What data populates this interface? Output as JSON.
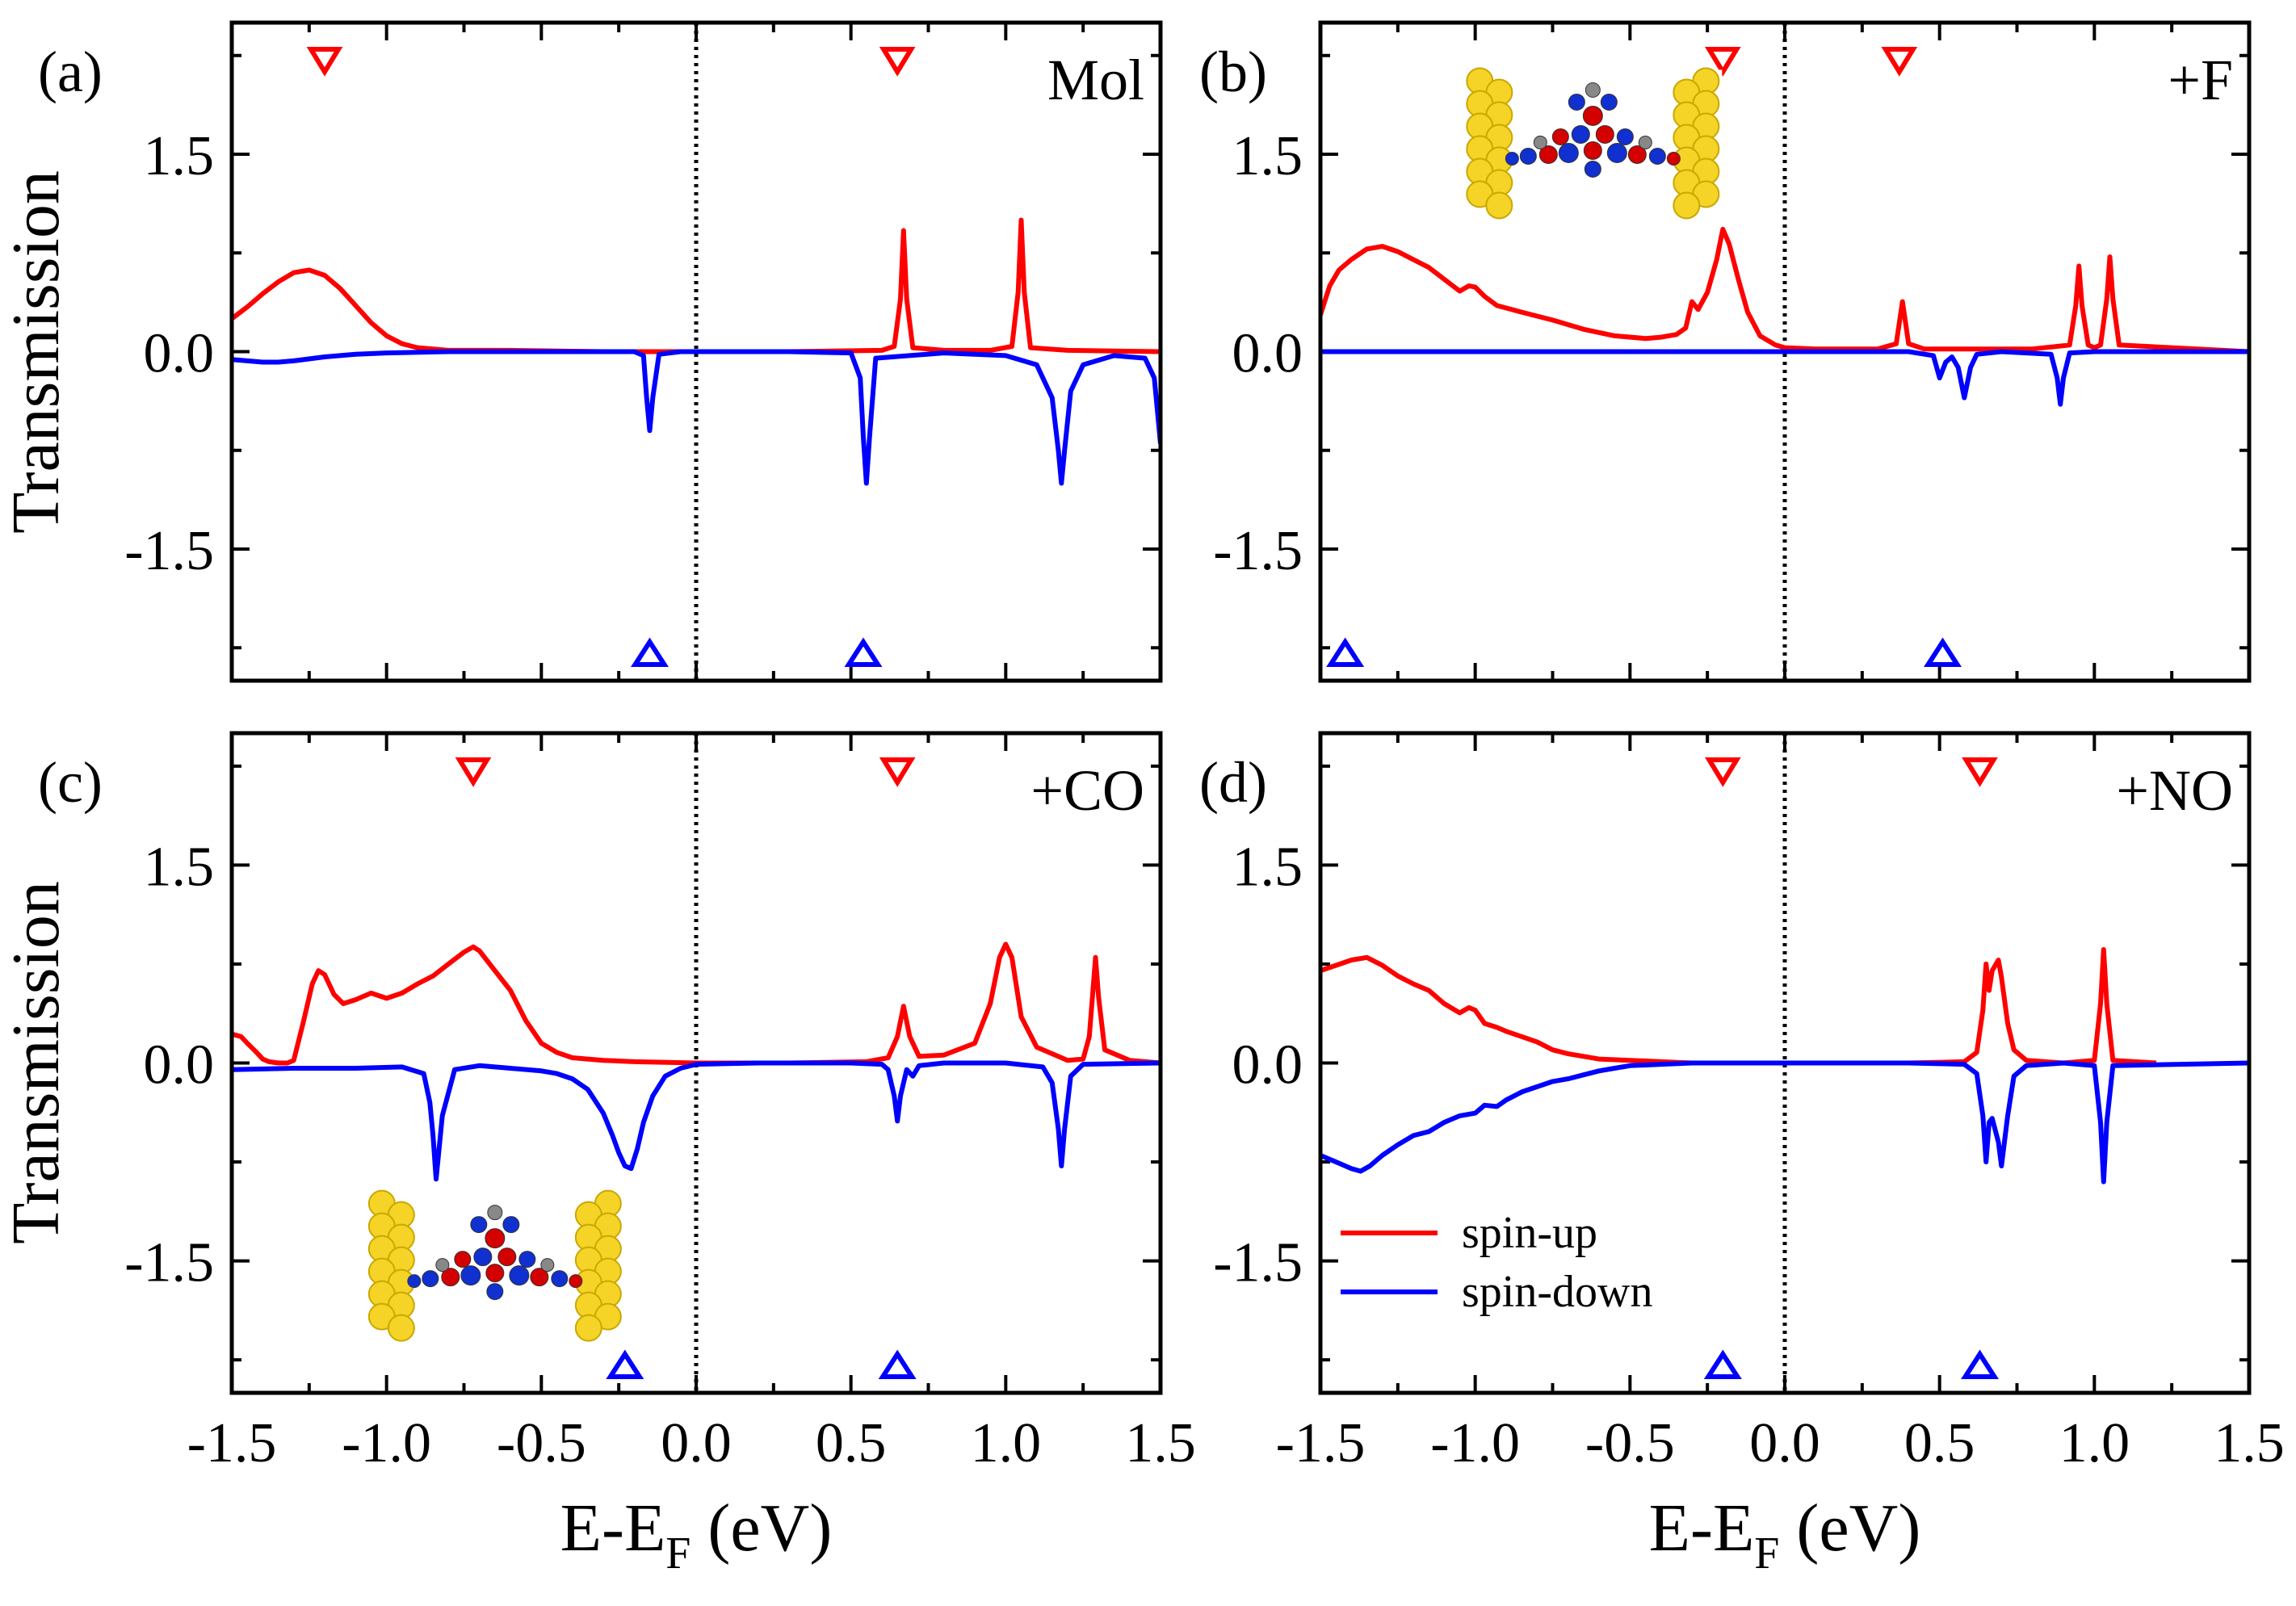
{
  "figure": {
    "ylabel": "Transmission",
    "xlabel_main": "E-E",
    "xlabel_sub": "F",
    "xlabel_unit": "(eV)",
    "legend": {
      "up_label": "spin-up",
      "down_label": "spin-down",
      "placement": "lower-left of panel (d)"
    },
    "colors": {
      "up": "#ff0000",
      "down": "#0000ff",
      "axis": "#000000"
    }
  },
  "chart_data": [
    {
      "type": "line",
      "panel": "(a)",
      "label": "Mol",
      "xlim": [
        -1.5,
        1.5
      ],
      "ylim": [
        -2.5,
        2.5
      ],
      "xticks": [
        "-1.5",
        "-1.0",
        "-0.5",
        "0.0",
        "0.5",
        "1.0",
        "1.5"
      ],
      "yticks": [
        "1.5",
        "0.0",
        "-1.5"
      ],
      "fermi_level": 0.0,
      "series": [
        {
          "name": "spin-up",
          "color": "#ff0000",
          "x": [
            -1.5,
            -1.45,
            -1.4,
            -1.35,
            -1.3,
            -1.25,
            -1.2,
            -1.15,
            -1.1,
            -1.05,
            -1.0,
            -0.95,
            -0.9,
            -0.85,
            -0.8,
            -0.6,
            -0.3,
            0.0,
            0.3,
            0.6,
            0.64,
            0.66,
            0.67,
            0.68,
            0.7,
            0.8,
            0.95,
            1.02,
            1.04,
            1.05,
            1.06,
            1.08,
            1.2,
            1.5
          ],
          "y": [
            0.25,
            0.34,
            0.44,
            0.53,
            0.6,
            0.62,
            0.58,
            0.48,
            0.35,
            0.22,
            0.12,
            0.06,
            0.03,
            0.02,
            0.01,
            0.01,
            0.0,
            0.0,
            0.0,
            0.01,
            0.04,
            0.4,
            0.92,
            0.4,
            0.03,
            0.01,
            0.01,
            0.04,
            0.45,
            1.0,
            0.45,
            0.03,
            0.01,
            0.0
          ]
        },
        {
          "name": "spin-down",
          "color": "#0000ff",
          "x": [
            -1.5,
            -1.4,
            -1.35,
            -1.3,
            -1.2,
            -1.1,
            -1.0,
            -0.8,
            -0.5,
            -0.3,
            -0.2,
            -0.17,
            -0.16,
            -0.15,
            -0.14,
            -0.12,
            -0.05,
            0.0,
            0.3,
            0.5,
            0.53,
            0.54,
            0.55,
            0.56,
            0.58,
            0.8,
            1.0,
            1.1,
            1.15,
            1.17,
            1.18,
            1.19,
            1.21,
            1.25,
            1.35,
            1.45,
            1.48,
            1.5
          ],
          "y": [
            -0.06,
            -0.08,
            -0.08,
            -0.07,
            -0.04,
            -0.02,
            -0.01,
            0.0,
            0.0,
            0.0,
            0.0,
            -0.03,
            -0.35,
            -0.6,
            -0.35,
            -0.02,
            0.0,
            0.0,
            0.0,
            -0.01,
            -0.2,
            -0.65,
            -1.0,
            -0.65,
            -0.05,
            -0.01,
            -0.03,
            -0.1,
            -0.35,
            -0.75,
            -1.0,
            -0.75,
            -0.3,
            -0.1,
            -0.03,
            -0.05,
            -0.2,
            -0.7
          ]
        }
      ],
      "markers_up": [
        -1.2,
        0.65
      ],
      "markers_down": [
        -0.15,
        0.54
      ],
      "inset": null
    },
    {
      "type": "line",
      "panel": "(b)",
      "label": "+F",
      "xlim": [
        -1.5,
        1.5
      ],
      "ylim": [
        -2.5,
        2.5
      ],
      "xticks": [
        "-1.5",
        "-1.0",
        "-0.5",
        "0.0",
        "0.5",
        "1.0",
        "1.5"
      ],
      "yticks": [
        "1.5",
        "0.0",
        "-1.5"
      ],
      "fermi_level": 0.0,
      "series": [
        {
          "name": "spin-up",
          "color": "#ff0000",
          "x": [
            -1.5,
            -1.47,
            -1.44,
            -1.4,
            -1.35,
            -1.3,
            -1.25,
            -1.2,
            -1.15,
            -1.1,
            -1.05,
            -1.02,
            -1.0,
            -0.97,
            -0.93,
            -0.85,
            -0.75,
            -0.65,
            -0.55,
            -0.45,
            -0.4,
            -0.35,
            -0.32,
            -0.3,
            -0.28,
            -0.25,
            -0.22,
            -0.2,
            -0.18,
            -0.15,
            -0.12,
            -0.08,
            -0.03,
            0.0,
            0.1,
            0.3,
            0.36,
            0.38,
            0.4,
            0.45,
            0.8,
            0.92,
            0.94,
            0.95,
            0.96,
            0.98,
            1.0,
            1.02,
            1.04,
            1.05,
            1.06,
            1.08,
            1.5
          ],
          "y": [
            0.28,
            0.5,
            0.62,
            0.7,
            0.78,
            0.8,
            0.76,
            0.7,
            0.64,
            0.55,
            0.46,
            0.5,
            0.49,
            0.42,
            0.35,
            0.3,
            0.24,
            0.17,
            0.12,
            0.1,
            0.11,
            0.13,
            0.18,
            0.38,
            0.32,
            0.45,
            0.7,
            0.93,
            0.82,
            0.55,
            0.3,
            0.12,
            0.05,
            0.03,
            0.02,
            0.02,
            0.06,
            0.38,
            0.06,
            0.02,
            0.02,
            0.05,
            0.35,
            0.65,
            0.35,
            0.05,
            0.03,
            0.05,
            0.4,
            0.72,
            0.4,
            0.05,
            0.0
          ]
        },
        {
          "name": "spin-down",
          "color": "#0000ff",
          "x": [
            -1.5,
            0.4,
            0.48,
            0.5,
            0.52,
            0.54,
            0.56,
            0.58,
            0.6,
            0.62,
            0.7,
            0.86,
            0.88,
            0.89,
            0.9,
            0.92,
            1.0,
            1.5
          ],
          "y": [
            0.0,
            0.0,
            -0.03,
            -0.2,
            -0.08,
            -0.04,
            -0.12,
            -0.35,
            -0.12,
            -0.02,
            0.0,
            -0.02,
            -0.2,
            -0.4,
            -0.2,
            -0.01,
            0.0,
            0.0
          ]
        }
      ],
      "markers_up": [
        -0.2,
        0.37
      ],
      "markers_down": [
        -1.42,
        0.51
      ],
      "inset": {
        "x_center": -0.62,
        "y_center": 1.62
      }
    },
    {
      "type": "line",
      "panel": "(c)",
      "label": "+CO",
      "xlim": [
        -1.5,
        1.5
      ],
      "ylim": [
        -2.5,
        2.5
      ],
      "xticks": [
        "-1.5",
        "-1.0",
        "-0.5",
        "0.0",
        "0.5",
        "1.0",
        "1.5"
      ],
      "yticks": [
        "1.5",
        "0.0",
        "-1.5"
      ],
      "fermi_level": 0.0,
      "series": [
        {
          "name": "spin-up",
          "color": "#ff0000",
          "x": [
            -1.5,
            -1.47,
            -1.45,
            -1.42,
            -1.4,
            -1.38,
            -1.35,
            -1.32,
            -1.3,
            -1.27,
            -1.24,
            -1.22,
            -1.2,
            -1.17,
            -1.14,
            -1.1,
            -1.05,
            -1.0,
            -0.95,
            -0.9,
            -0.85,
            -0.8,
            -0.75,
            -0.72,
            -0.7,
            -0.65,
            -0.6,
            -0.55,
            -0.5,
            -0.45,
            -0.4,
            -0.3,
            -0.2,
            0.0,
            0.3,
            0.55,
            0.62,
            0.65,
            0.67,
            0.69,
            0.72,
            0.8,
            0.9,
            0.95,
            0.98,
            1.0,
            1.02,
            1.05,
            1.1,
            1.2,
            1.25,
            1.27,
            1.28,
            1.29,
            1.3,
            1.32,
            1.4,
            1.5
          ],
          "y": [
            0.22,
            0.2,
            0.15,
            0.08,
            0.03,
            0.01,
            0.0,
            0.0,
            0.02,
            0.3,
            0.6,
            0.7,
            0.67,
            0.52,
            0.45,
            0.48,
            0.53,
            0.49,
            0.53,
            0.6,
            0.66,
            0.75,
            0.84,
            0.88,
            0.85,
            0.7,
            0.55,
            0.32,
            0.15,
            0.08,
            0.04,
            0.02,
            0.01,
            0.0,
            0.0,
            0.01,
            0.04,
            0.2,
            0.43,
            0.2,
            0.05,
            0.06,
            0.15,
            0.45,
            0.8,
            0.9,
            0.8,
            0.35,
            0.12,
            0.02,
            0.03,
            0.2,
            0.5,
            0.8,
            0.5,
            0.1,
            0.02,
            0.0
          ]
        },
        {
          "name": "spin-down",
          "color": "#0000ff",
          "x": [
            -1.5,
            -1.3,
            -1.1,
            -0.95,
            -0.88,
            -0.86,
            -0.85,
            -0.84,
            -0.82,
            -0.78,
            -0.7,
            -0.6,
            -0.5,
            -0.45,
            -0.4,
            -0.35,
            -0.3,
            -0.27,
            -0.25,
            -0.23,
            -0.21,
            -0.19,
            -0.17,
            -0.14,
            -0.1,
            -0.05,
            0.0,
            0.2,
            0.5,
            0.6,
            0.62,
            0.64,
            0.65,
            0.66,
            0.68,
            0.7,
            0.72,
            0.8,
            1.0,
            1.12,
            1.15,
            1.17,
            1.18,
            1.19,
            1.21,
            1.25,
            1.5
          ],
          "y": [
            -0.05,
            -0.04,
            -0.04,
            -0.03,
            -0.08,
            -0.3,
            -0.55,
            -0.88,
            -0.4,
            -0.05,
            -0.02,
            -0.04,
            -0.06,
            -0.08,
            -0.12,
            -0.2,
            -0.38,
            -0.55,
            -0.68,
            -0.78,
            -0.8,
            -0.65,
            -0.45,
            -0.25,
            -0.1,
            -0.04,
            -0.01,
            0.0,
            0.0,
            -0.01,
            -0.05,
            -0.25,
            -0.44,
            -0.25,
            -0.05,
            -0.1,
            -0.02,
            0.0,
            0.0,
            -0.03,
            -0.15,
            -0.5,
            -0.78,
            -0.5,
            -0.1,
            -0.01,
            0.0
          ]
        }
      ],
      "markers_up": [
        -0.72,
        0.65
      ],
      "markers_down": [
        -0.23,
        0.65
      ],
      "inset": {
        "x_center": -0.65,
        "y_center": -1.5
      }
    },
    {
      "type": "line",
      "panel": "(d)",
      "label": "+NO",
      "xlim": [
        -1.5,
        1.5
      ],
      "ylim": [
        -2.5,
        2.5
      ],
      "xticks": [
        "-1.5",
        "-1.0",
        "-0.5",
        "0.0",
        "0.5",
        "1.0",
        "1.5"
      ],
      "yticks": [
        "1.5",
        "0.0",
        "-1.5"
      ],
      "fermi_level": 0.0,
      "series": [
        {
          "name": "spin-up",
          "color": "#ff0000",
          "x": [
            -1.5,
            -1.45,
            -1.4,
            -1.35,
            -1.3,
            -1.25,
            -1.2,
            -1.15,
            -1.1,
            -1.05,
            -1.02,
            -1.0,
            -0.97,
            -0.93,
            -0.9,
            -0.85,
            -0.8,
            -0.75,
            -0.7,
            -0.65,
            -0.6,
            -0.5,
            -0.4,
            -0.3,
            -0.2,
            0.0,
            0.4,
            0.58,
            0.62,
            0.64,
            0.65,
            0.66,
            0.67,
            0.69,
            0.7,
            0.72,
            0.74,
            0.78,
            0.9,
            1.0,
            1.02,
            1.03,
            1.04,
            1.06,
            1.2
          ],
          "y": [
            0.7,
            0.74,
            0.78,
            0.8,
            0.74,
            0.66,
            0.6,
            0.55,
            0.45,
            0.38,
            0.42,
            0.4,
            0.3,
            0.27,
            0.24,
            0.2,
            0.16,
            0.1,
            0.07,
            0.05,
            0.03,
            0.02,
            0.01,
            0.0,
            0.0,
            0.0,
            0.0,
            0.01,
            0.08,
            0.4,
            0.75,
            0.55,
            0.7,
            0.78,
            0.65,
            0.3,
            0.1,
            0.02,
            0.0,
            0.02,
            0.45,
            0.86,
            0.45,
            0.02,
            0.0
          ]
        },
        {
          "name": "spin-down",
          "color": "#0000ff",
          "x": [
            -1.5,
            -1.45,
            -1.4,
            -1.37,
            -1.34,
            -1.3,
            -1.25,
            -1.2,
            -1.15,
            -1.1,
            -1.05,
            -1.0,
            -0.97,
            -0.93,
            -0.9,
            -0.85,
            -0.8,
            -0.75,
            -0.7,
            -0.65,
            -0.6,
            -0.55,
            -0.5,
            -0.4,
            -0.3,
            0.0,
            0.4,
            0.58,
            0.62,
            0.64,
            0.65,
            0.66,
            0.67,
            0.69,
            0.7,
            0.72,
            0.74,
            0.78,
            0.9,
            1.0,
            1.02,
            1.03,
            1.04,
            1.06,
            1.5
          ],
          "y": [
            -0.7,
            -0.75,
            -0.8,
            -0.82,
            -0.78,
            -0.7,
            -0.62,
            -0.55,
            -0.52,
            -0.45,
            -0.4,
            -0.38,
            -0.32,
            -0.33,
            -0.28,
            -0.22,
            -0.18,
            -0.14,
            -0.12,
            -0.09,
            -0.06,
            -0.04,
            -0.02,
            -0.01,
            0.0,
            0.0,
            0.0,
            -0.01,
            -0.08,
            -0.4,
            -0.75,
            -0.45,
            -0.42,
            -0.6,
            -0.78,
            -0.4,
            -0.1,
            -0.02,
            0.0,
            -0.02,
            -0.45,
            -0.9,
            -0.45,
            -0.02,
            0.0
          ]
        }
      ],
      "markers_up": [
        -0.2,
        0.63
      ],
      "markers_down": [
        -0.2,
        0.63
      ],
      "inset": null
    }
  ]
}
